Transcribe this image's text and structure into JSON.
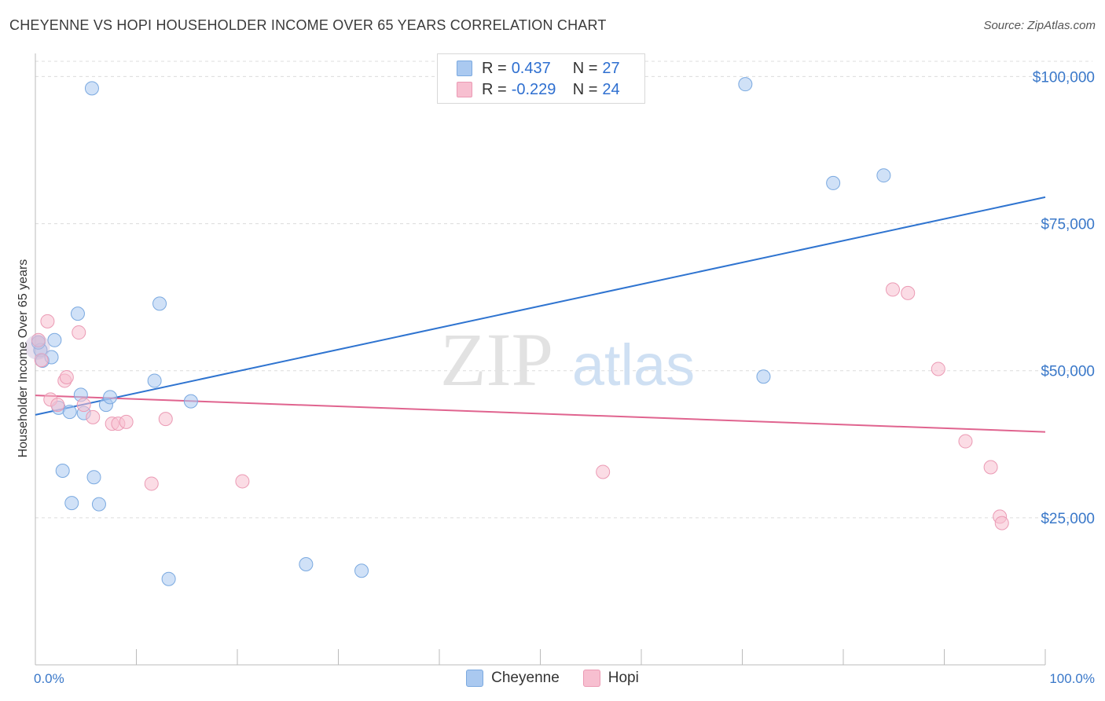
{
  "header": {
    "title": "CHEYENNE VS HOPI HOUSEHOLDER INCOME OVER 65 YEARS CORRELATION CHART",
    "source": "Source: ZipAtlas.com"
  },
  "watermark": {
    "part1": "ZIP",
    "part2": "atlas"
  },
  "legend": {
    "rows": [
      {
        "r_label": "R =",
        "r_value": "0.437",
        "n_label": "N =",
        "n_value": "27",
        "color": "#aac9f0",
        "border": "#7aa9e0"
      },
      {
        "r_label": "R =",
        "r_value": "-0.229",
        "n_label": "N =",
        "n_value": "24",
        "color": "#f7bfd0",
        "border": "#eb9ab4"
      }
    ]
  },
  "bottom_legend": {
    "items": [
      {
        "label": "Cheyenne",
        "color": "#aac9f0",
        "border": "#7aa9e0"
      },
      {
        "label": "Hopi",
        "color": "#f7bfd0",
        "border": "#eb9ab4"
      }
    ]
  },
  "chart_data": {
    "type": "scatter",
    "title": "CHEYENNE VS HOPI HOUSEHOLDER INCOME OVER 65 YEARS CORRELATION CHART",
    "xlabel": "",
    "ylabel": "Householder Income Over 65 years",
    "xlim": [
      0,
      100
    ],
    "ylim": [
      0,
      105000
    ],
    "x_tick_labels": [
      "0.0%",
      "100.0%"
    ],
    "y_ticks": [
      25000,
      50000,
      75000,
      100000
    ],
    "y_tick_labels": [
      "$25,000",
      "$50,000",
      "$75,000",
      "$100,000"
    ],
    "grid": true,
    "legend_position": "top-center",
    "series": [
      {
        "name": "Cheyenne",
        "color": "#7aa9e0",
        "fill": "#aac9f0",
        "line_color": "#2f74d0",
        "trend": [
          [
            0,
            42500
          ],
          [
            100,
            79500
          ]
        ],
        "points": [
          [
            0.5,
            53500
          ],
          [
            0.7,
            51700
          ],
          [
            1.6,
            52300
          ],
          [
            1.9,
            55200
          ],
          [
            2.3,
            43700
          ],
          [
            2.7,
            33000
          ],
          [
            3.4,
            43000
          ],
          [
            3.6,
            27500
          ],
          [
            4.2,
            59700
          ],
          [
            4.5,
            45900
          ],
          [
            4.8,
            42800
          ],
          [
            5.6,
            98000
          ],
          [
            5.8,
            31900
          ],
          [
            6.3,
            27300
          ],
          [
            7.0,
            44200
          ],
          [
            7.4,
            45500
          ],
          [
            11.8,
            48300
          ],
          [
            12.3,
            61400
          ],
          [
            13.2,
            14600
          ],
          [
            15.4,
            44800
          ],
          [
            26.8,
            17100
          ],
          [
            32.3,
            16000
          ],
          [
            70.3,
            98700
          ],
          [
            72.1,
            49000
          ],
          [
            79.0,
            81900
          ],
          [
            84.0,
            83200
          ],
          [
            0.3,
            54800
          ]
        ]
      },
      {
        "name": "Hopi",
        "color": "#eb9ab4",
        "fill": "#f7bfd0",
        "line_color": "#e0648f",
        "trend": [
          [
            0,
            45800
          ],
          [
            100,
            39600
          ]
        ],
        "points": [
          [
            0.3,
            55200
          ],
          [
            1.2,
            58400
          ],
          [
            1.5,
            45100
          ],
          [
            2.2,
            44200
          ],
          [
            2.9,
            48300
          ],
          [
            3.1,
            48900
          ],
          [
            4.3,
            56500
          ],
          [
            4.8,
            44200
          ],
          [
            5.7,
            42100
          ],
          [
            7.6,
            41000
          ],
          [
            8.2,
            41000
          ],
          [
            9.0,
            41300
          ],
          [
            11.5,
            30800
          ],
          [
            12.9,
            41800
          ],
          [
            20.5,
            31200
          ],
          [
            56.2,
            32800
          ],
          [
            84.9,
            63800
          ],
          [
            86.4,
            63200
          ],
          [
            89.4,
            50300
          ],
          [
            92.1,
            38000
          ],
          [
            94.6,
            33600
          ],
          [
            95.5,
            25200
          ],
          [
            95.7,
            24100
          ],
          [
            0.6,
            51800
          ]
        ]
      }
    ]
  }
}
